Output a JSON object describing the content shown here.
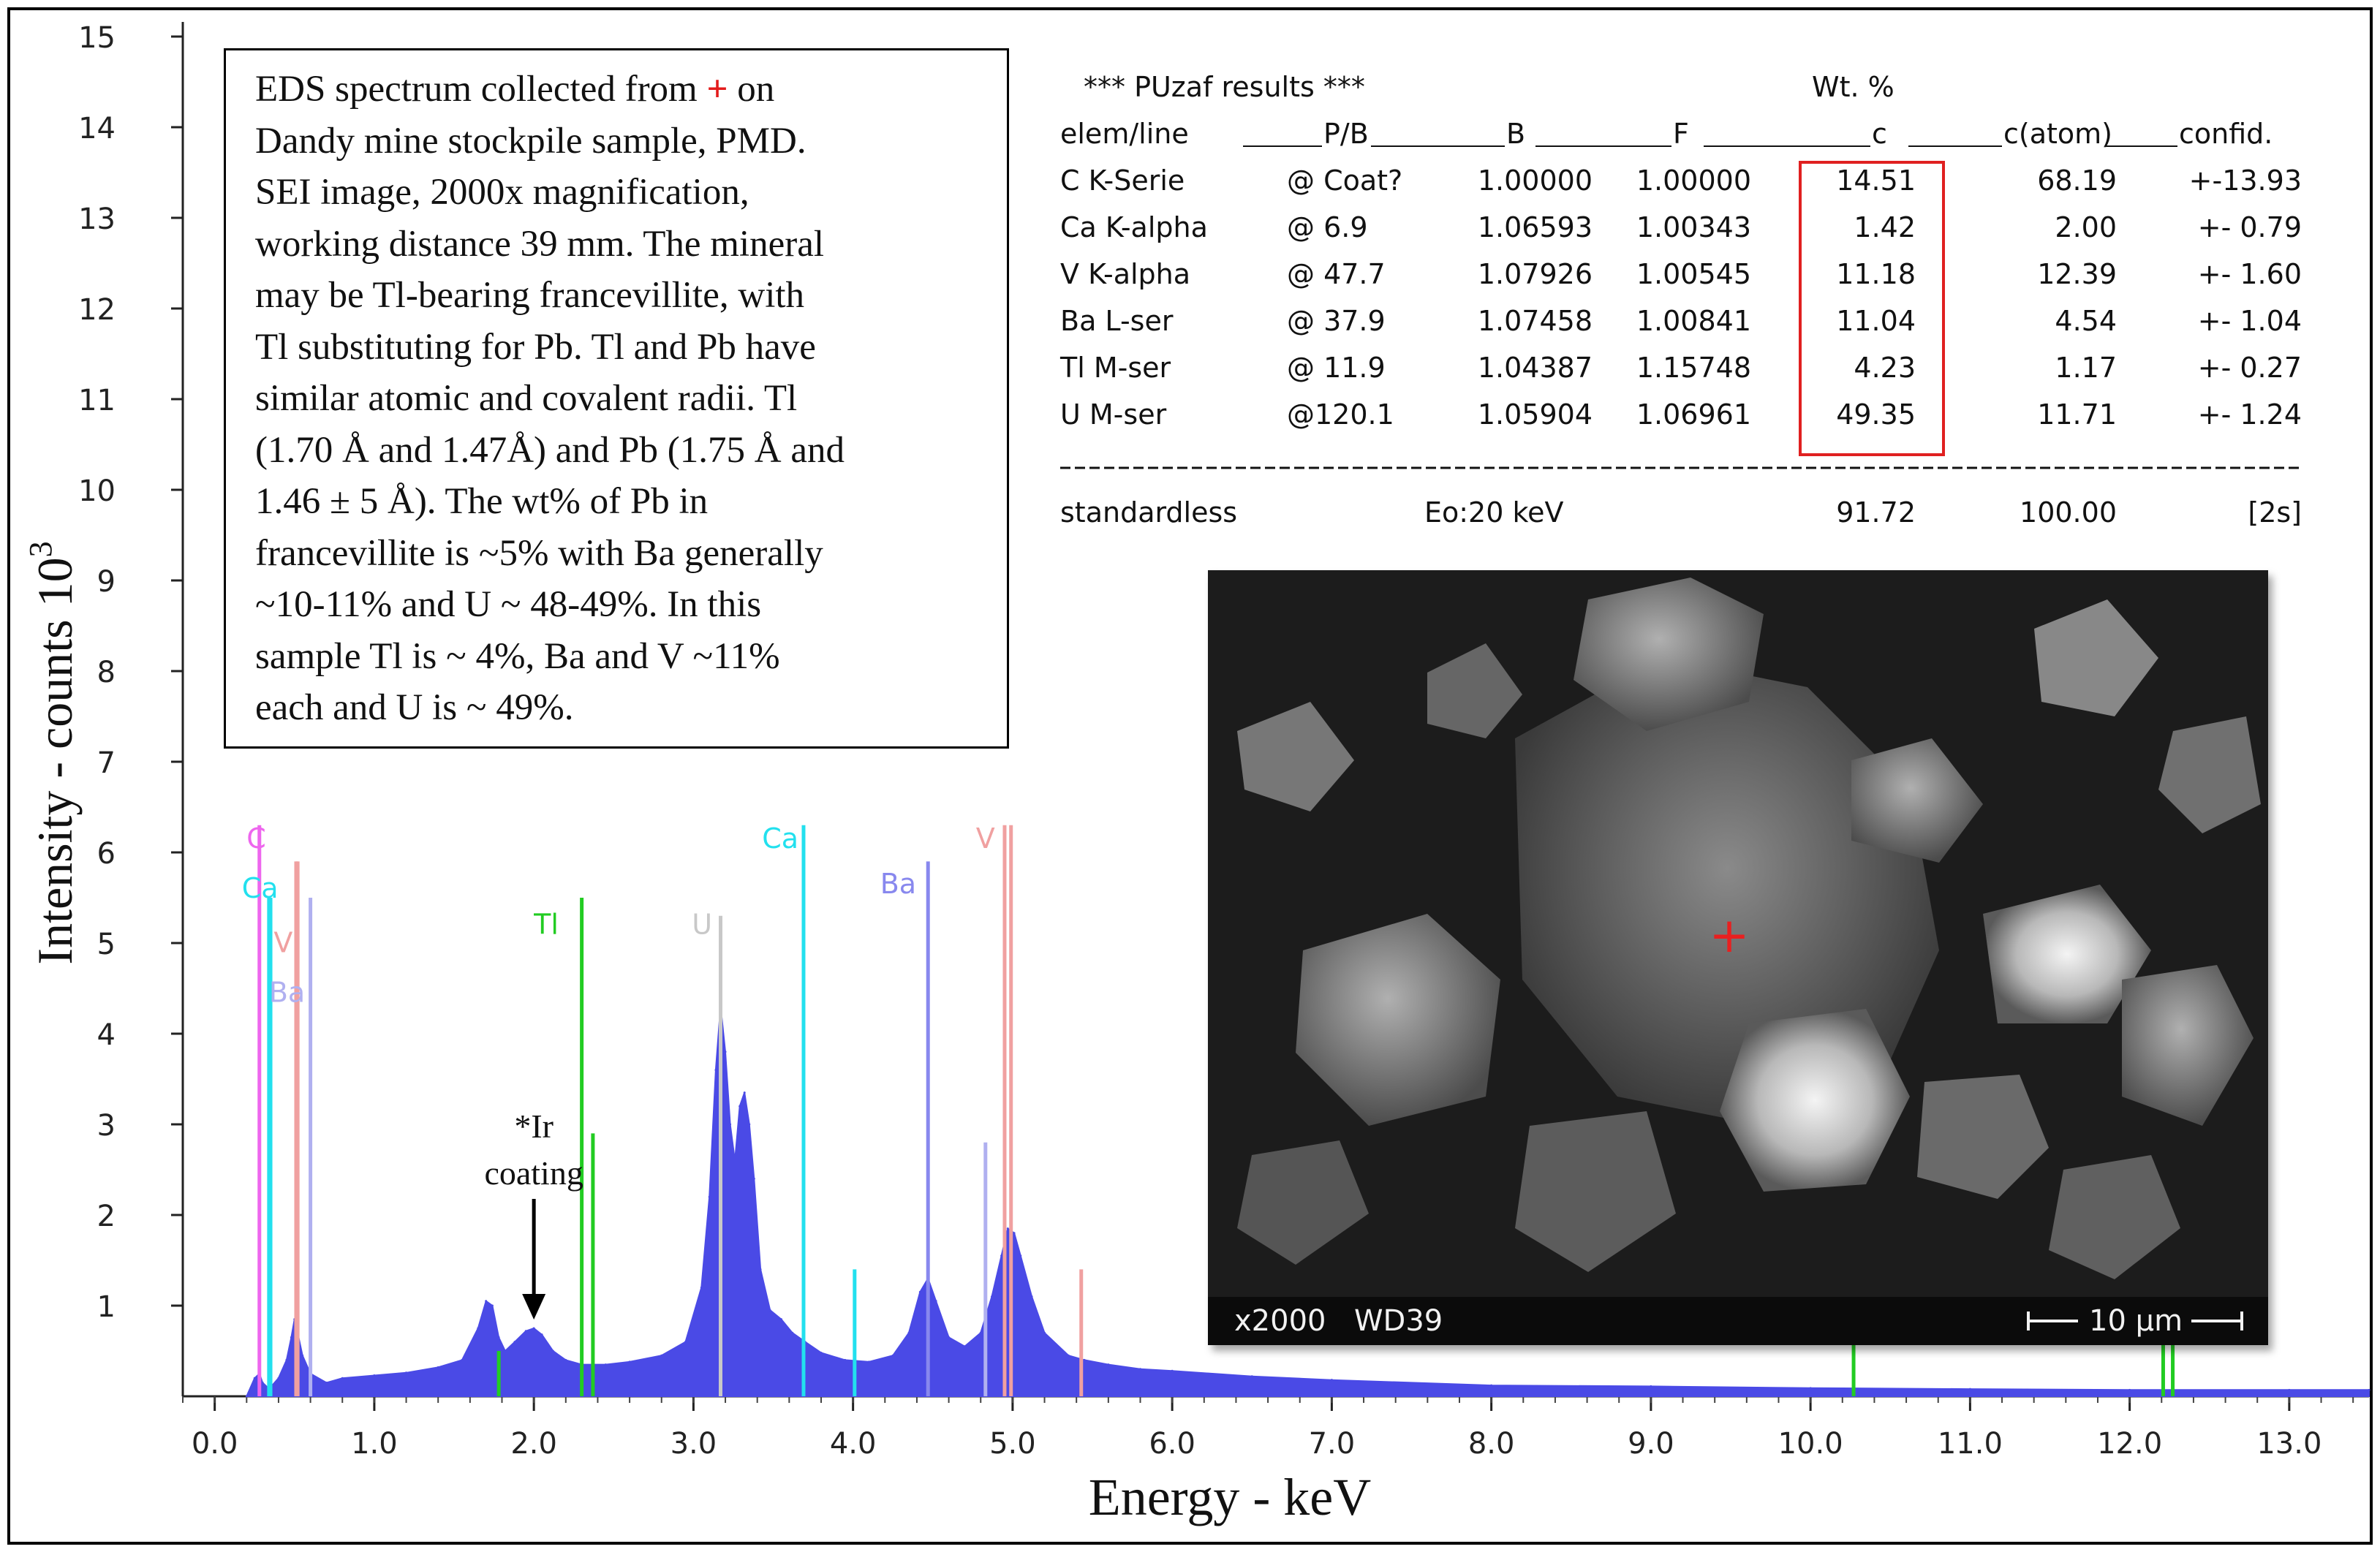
{
  "info_box": {
    "line1_pre": "EDS  spectrum collected from ",
    "line1_marker": "+",
    "line1_post": " on",
    "lines": [
      "Dandy mine stockpile sample, PMD.",
      "SEI image, 2000x magnification,",
      "working distance 39 mm.  The mineral",
      "may be Tl-bearing francevillite, with",
      "Tl substituting for Pb. Tl and Pb have",
      "similar atomic and covalent radii. Tl",
      "(1.70 Å and 1.47Å) and Pb (1.75 Å and",
      "1.46 ± 5 Å). The wt% of Pb in",
      "francevillite is ~5% with Ba generally",
      "~10-11% and U ~ 48-49%. In this",
      "sample Tl is ~ 4%, Ba and V ~11%",
      "each and U is ~ 49%."
    ]
  },
  "results": {
    "title": "*** PUzaf results ***",
    "wt_label": "Wt. %",
    "header": [
      "elem/line",
      "P/B",
      "B",
      "F",
      "c",
      "c(atom)",
      "confid."
    ],
    "rows": [
      [
        "C  K-Serie",
        "@ Coat?",
        "1.00000",
        "1.00000",
        "14.51",
        "68.19",
        "+-13.93"
      ],
      [
        "Ca K-alpha",
        "@   6.9",
        "1.06593",
        "1.00343",
        "1.42",
        "2.00",
        "+- 0.79"
      ],
      [
        "V  K-alpha",
        "@  47.7",
        "1.07926",
        "1.00545",
        "11.18",
        "12.39",
        "+- 1.60"
      ],
      [
        "Ba L-ser",
        "@  37.9",
        "1.07458",
        "1.00841",
        "11.04",
        "4.54",
        "+- 1.04"
      ],
      [
        "Tl M-ser",
        "@  11.9",
        "1.04387",
        "1.15748",
        "4.23",
        "1.17",
        "+- 0.27"
      ],
      [
        "U  M-ser",
        "@120.1",
        "1.05904",
        "1.06961",
        "49.35",
        "11.71",
        "+- 1.24"
      ]
    ],
    "footer": [
      "standardless",
      "Eo:20 keV",
      "91.72",
      "100.00",
      "[2s]"
    ],
    "highlight_color": "#e02020"
  },
  "sem_image": {
    "magnification": "x2000",
    "working_distance": "WD39",
    "scale_bar": "10 µm",
    "marker": "+",
    "marker_color": "#e82020"
  },
  "annotation": {
    "line1": "*Ir",
    "line2": "coating",
    "x_keV": 2.0
  },
  "chart_data": {
    "type": "area",
    "title": "",
    "xlabel": "Energy - keV",
    "ylabel": "Intensity - counts 10",
    "ylabel_superscript": "3",
    "xlim": [
      -0.2,
      13.5
    ],
    "ylim": [
      0,
      15
    ],
    "grid": false,
    "x_ticks": [
      "0.0",
      "1.0",
      "2.0",
      "3.0",
      "4.0",
      "5.0",
      "6.0",
      "7.0",
      "8.0",
      "9.0",
      "10.0",
      "11.0",
      "12.0",
      "13.0"
    ],
    "y_ticks": [
      "1",
      "2",
      "3",
      "4",
      "5",
      "6",
      "7",
      "8",
      "9",
      "10",
      "11",
      "12",
      "13",
      "14",
      "15"
    ],
    "spectrum_color": "#4a4ae6",
    "spectrum": {
      "x": [
        0.2,
        0.25,
        0.28,
        0.3,
        0.33,
        0.36,
        0.4,
        0.45,
        0.48,
        0.5,
        0.52,
        0.55,
        0.6,
        0.7,
        0.8,
        1.0,
        1.2,
        1.4,
        1.55,
        1.65,
        1.7,
        1.74,
        1.78,
        1.82,
        1.88,
        1.95,
        2.0,
        2.05,
        2.12,
        2.2,
        2.3,
        2.45,
        2.6,
        2.8,
        2.95,
        3.05,
        3.1,
        3.14,
        3.17,
        3.2,
        3.23,
        3.26,
        3.29,
        3.32,
        3.35,
        3.38,
        3.42,
        3.48,
        3.55,
        3.62,
        3.7,
        3.8,
        3.95,
        4.1,
        4.25,
        4.35,
        4.42,
        4.47,
        4.52,
        4.6,
        4.7,
        4.8,
        4.87,
        4.93,
        4.97,
        5.01,
        5.05,
        5.12,
        5.2,
        5.35,
        5.45,
        5.6,
        5.8,
        6.0,
        6.5,
        7.0,
        8.0,
        9.0,
        10.0,
        11.0,
        12.0,
        13.0,
        13.5
      ],
      "y": [
        0.0,
        0.2,
        0.25,
        0.15,
        0.1,
        0.12,
        0.2,
        0.4,
        0.65,
        0.85,
        0.7,
        0.45,
        0.25,
        0.15,
        0.2,
        0.23,
        0.26,
        0.32,
        0.4,
        0.75,
        1.05,
        1.0,
        0.65,
        0.5,
        0.6,
        0.72,
        0.75,
        0.68,
        0.5,
        0.4,
        0.35,
        0.35,
        0.38,
        0.45,
        0.6,
        1.2,
        2.2,
        3.6,
        4.3,
        3.8,
        3.0,
        2.6,
        3.2,
        3.35,
        3.0,
        2.4,
        1.4,
        0.95,
        0.85,
        0.7,
        0.6,
        0.48,
        0.4,
        0.38,
        0.45,
        0.7,
        1.15,
        1.3,
        1.05,
        0.65,
        0.55,
        0.7,
        1.1,
        1.55,
        1.85,
        1.8,
        1.55,
        1.1,
        0.7,
        0.45,
        0.4,
        0.35,
        0.3,
        0.28,
        0.22,
        0.18,
        0.12,
        0.11,
        0.09,
        0.08,
        0.07,
        0.07,
        0.07
      ]
    },
    "element_markers": [
      {
        "element": "C",
        "energy": 0.28,
        "height": 6.3,
        "color": "#ee66ee"
      },
      {
        "element": "Ca",
        "energy": 0.34,
        "height": 5.5,
        "color": "#22e0ee"
      },
      {
        "element": "Ca",
        "energy": 0.35,
        "height": 5.5,
        "color": "#22e0ee"
      },
      {
        "element": "V",
        "energy": 0.51,
        "height": 5.9,
        "color": "#f0a0a0"
      },
      {
        "element": "V",
        "energy": 0.52,
        "height": 5.9,
        "color": "#f0a0a0"
      },
      {
        "element": "Ba",
        "energy": 0.6,
        "height": 5.5,
        "color": "#b0b0f0"
      },
      {
        "element": "Tl",
        "energy": 1.78,
        "height": 0.5,
        "color": "#22cc22"
      },
      {
        "element": "Tl",
        "energy": 2.3,
        "height": 5.5,
        "color": "#22cc22"
      },
      {
        "element": "Tl",
        "energy": 2.37,
        "height": 2.9,
        "color": "#22cc22"
      },
      {
        "element": "U",
        "energy": 3.17,
        "height": 5.3,
        "color": "#c8c8c8"
      },
      {
        "element": "Ca",
        "energy": 3.69,
        "height": 6.3,
        "color": "#22e0ee"
      },
      {
        "element": "Ca",
        "energy": 4.01,
        "height": 1.4,
        "color": "#22e0ee"
      },
      {
        "element": "Ba",
        "energy": 4.47,
        "height": 5.9,
        "color": "#8888ee"
      },
      {
        "element": "V",
        "energy": 4.95,
        "height": 6.3,
        "color": "#f0a0a0"
      },
      {
        "element": "V",
        "energy": 4.99,
        "height": 6.3,
        "color": "#f0a0a0"
      },
      {
        "element": "Ba",
        "energy": 4.83,
        "height": 2.8,
        "color": "#b0b0f0"
      },
      {
        "element": "V",
        "energy": 5.43,
        "height": 1.4,
        "color": "#f0a0a0"
      },
      {
        "element": "Tl",
        "energy": 10.27,
        "height": 0.9,
        "color": "#22cc22"
      },
      {
        "element": "Tl",
        "energy": 12.21,
        "height": 0.9,
        "color": "#22cc22"
      },
      {
        "element": "Tl",
        "energy": 12.27,
        "height": 0.9,
        "color": "#22cc22"
      }
    ],
    "labels": [
      {
        "text": "C",
        "energy": 0.2,
        "level": 6.05,
        "color": "#ee66ee"
      },
      {
        "text": "Ca",
        "energy": 0.17,
        "level": 5.5,
        "color": "#22e0ee"
      },
      {
        "text": "V",
        "energy": 0.37,
        "level": 4.9,
        "color": "#f0a0a0"
      },
      {
        "text": "Ba",
        "energy": 0.34,
        "level": 4.35,
        "color": "#b0b0f0"
      },
      {
        "text": "Tl",
        "energy": 2.0,
        "level": 5.1,
        "color": "#22cc22"
      },
      {
        "text": "U",
        "energy": 2.99,
        "level": 5.1,
        "color": "#c8c8c8"
      },
      {
        "text": "Ca",
        "energy": 3.43,
        "level": 6.05,
        "color": "#22e0ee"
      },
      {
        "text": "Ba",
        "energy": 4.17,
        "level": 5.55,
        "color": "#8888ee"
      },
      {
        "text": "V",
        "energy": 4.77,
        "level": 6.05,
        "color": "#f0a0a0"
      }
    ]
  }
}
